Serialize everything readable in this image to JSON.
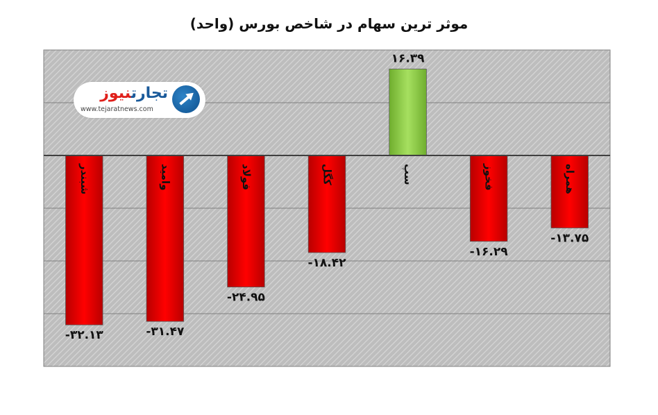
{
  "chart_data": {
    "type": "bar",
    "title": "موثر ترین سهام در شاخص بورس (واحد)",
    "categories": [
      "شبندر",
      "وامید",
      "فولاد",
      "کگل",
      "سپ",
      "فخوز",
      "همراه"
    ],
    "values": [
      -32.13,
      -31.47,
      -24.95,
      -18.42,
      16.39,
      -16.29,
      -13.75
    ],
    "value_labels": [
      "-۳۲.۱۳",
      "-۳۱.۴۷",
      "-۲۴.۹۵",
      "-۱۸.۴۲",
      "۱۶.۳۹",
      "-۱۶.۲۹",
      "-۱۳.۷۵"
    ],
    "ylim": [
      -40,
      20
    ],
    "grid": true,
    "xlabel": "",
    "ylabel": "",
    "colors": {
      "negative": "#ff0000",
      "positive": "#92d050",
      "plot_bg": "#c0c0c0",
      "grid": "#7f7f7f"
    }
  },
  "logo": {
    "part1": "تجارت",
    "part2": "نیوز",
    "url": "www.tejaratnews.com"
  }
}
